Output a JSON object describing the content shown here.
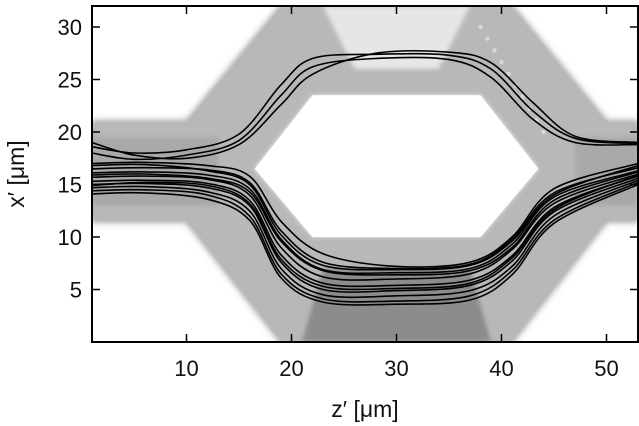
{
  "chart_data": {
    "type": "line",
    "title": "",
    "xlabel": "z′ [μm]",
    "ylabel": "x′ [μm]",
    "xlim": [
      1,
      53
    ],
    "ylim": [
      0,
      32
    ],
    "xticks": [
      10,
      20,
      30,
      40,
      50
    ],
    "yticks": [
      5,
      10,
      15,
      20,
      25,
      30
    ],
    "grid": false,
    "legend": "none",
    "background": "grayscale waveguide intensity map (interferometer: straight input/output guides splitting into an upper and a lower arm)",
    "series": [
      {
        "x": [
          1,
          5,
          10,
          15,
          19,
          22,
          28,
          35,
          39,
          43,
          47,
          53
        ],
        "y": [
          18.6,
          18.0,
          18.3,
          19.8,
          24.5,
          27.0,
          27.4,
          27.3,
          26.0,
          22.0,
          19.4,
          18.9
        ]
      },
      {
        "x": [
          1,
          5,
          10,
          15,
          19,
          22,
          28,
          35,
          39,
          43,
          47,
          53
        ],
        "y": [
          18.0,
          17.4,
          17.8,
          19.2,
          23.5,
          26.2,
          27.0,
          26.9,
          25.2,
          21.2,
          19.0,
          18.8
        ]
      },
      {
        "x": [
          1,
          5,
          10,
          15,
          19,
          22,
          28,
          35,
          39,
          43,
          47,
          53
        ],
        "y": [
          19.0,
          17.8,
          17.5,
          18.8,
          22.6,
          25.5,
          27.5,
          27.6,
          26.6,
          22.8,
          19.6,
          19.0
        ]
      },
      {
        "x": [
          1,
          6,
          12,
          16,
          19,
          23,
          30,
          37,
          41,
          45,
          53
        ],
        "y": [
          17.0,
          17.1,
          16.8,
          15.8,
          11.5,
          8.4,
          7.2,
          7.6,
          10.0,
          14.6,
          17.0
        ]
      },
      {
        "x": [
          1,
          6,
          12,
          16,
          19,
          23,
          30,
          37,
          41,
          45,
          53
        ],
        "y": [
          16.5,
          16.6,
          16.4,
          15.2,
          10.6,
          7.6,
          7.0,
          7.4,
          9.8,
          14.2,
          16.6
        ]
      },
      {
        "x": [
          1,
          6,
          12,
          16,
          19,
          23,
          30,
          37,
          41,
          45,
          53
        ],
        "y": [
          16.1,
          16.2,
          15.9,
          14.6,
          9.8,
          6.9,
          6.6,
          7.0,
          9.3,
          13.8,
          16.3
        ]
      },
      {
        "x": [
          1,
          6,
          12,
          16,
          19,
          23,
          30,
          37,
          41,
          45,
          53
        ],
        "y": [
          15.7,
          15.8,
          15.5,
          14.0,
          9.0,
          6.2,
          6.0,
          6.5,
          8.8,
          13.2,
          16.0
        ]
      },
      {
        "x": [
          1,
          6,
          12,
          16,
          19,
          23,
          30,
          37,
          41,
          45,
          53
        ],
        "y": [
          15.3,
          15.4,
          15.1,
          13.5,
          8.3,
          5.6,
          5.4,
          5.9,
          8.2,
          12.8,
          15.8
        ]
      },
      {
        "x": [
          1,
          6,
          12,
          16,
          19,
          23,
          30,
          37,
          41,
          45,
          53
        ],
        "y": [
          15.0,
          15.1,
          14.7,
          13.0,
          7.6,
          5.0,
          4.9,
          5.4,
          7.7,
          12.4,
          15.6
        ]
      },
      {
        "x": [
          1,
          6,
          12,
          16,
          19,
          23,
          30,
          37,
          41,
          45,
          53
        ],
        "y": [
          14.7,
          14.8,
          14.3,
          12.5,
          7.0,
          4.5,
          4.4,
          4.9,
          7.2,
          12.0,
          15.4
        ]
      },
      {
        "x": [
          1,
          6,
          12,
          16,
          19,
          23,
          30,
          37,
          41,
          45,
          53
        ],
        "y": [
          14.4,
          14.5,
          14.0,
          12.0,
          6.5,
          4.1,
          3.9,
          4.4,
          6.8,
          11.6,
          15.2
        ]
      },
      {
        "x": [
          1,
          6,
          12,
          16,
          19,
          23,
          30,
          37,
          41,
          45,
          53
        ],
        "y": [
          14.1,
          14.2,
          13.6,
          11.6,
          6.1,
          3.8,
          3.6,
          4.0,
          6.4,
          11.3,
          15.0
        ]
      },
      {
        "x": [
          1,
          6,
          12,
          16,
          19,
          23,
          30,
          37,
          41,
          45,
          53
        ],
        "y": [
          15.9,
          16.0,
          15.6,
          14.3,
          9.6,
          6.8,
          6.4,
          6.8,
          9.0,
          13.5,
          16.2
        ]
      },
      {
        "x": [
          1,
          6,
          12,
          16,
          19,
          23,
          30,
          37,
          41,
          45,
          53
        ],
        "y": [
          14.9,
          15.2,
          14.9,
          13.2,
          7.9,
          5.3,
          5.1,
          5.6,
          8.0,
          12.6,
          15.9
        ]
      },
      {
        "x": [
          1,
          6,
          12,
          16,
          19,
          23,
          30,
          37,
          41,
          45,
          53
        ],
        "y": [
          16.8,
          16.9,
          16.3,
          15.0,
          10.2,
          7.3,
          6.9,
          7.3,
          9.6,
          14.0,
          16.8
        ]
      }
    ]
  }
}
